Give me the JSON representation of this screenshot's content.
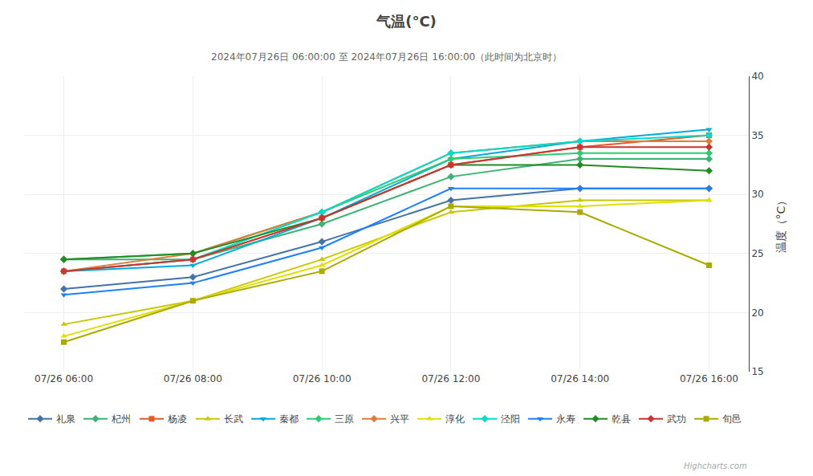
{
  "chart_data": {
    "type": "line",
    "title": "气温(°C)",
    "subtitle": "2024年07月26日 06:00:00 至 2024年07月26日 16:00:00（此时间为北京时）",
    "y_label": "温度（°C）",
    "categories": [
      "07/26 06:00",
      "07/26 08:00",
      "07/26 10:00",
      "07/26 12:00",
      "07/26 14:00",
      "07/26 16:00"
    ],
    "series": [
      {
        "name": "礼泉",
        "color": "#4572A7",
        "marker": "diamond",
        "values": [
          22.0,
          23.0,
          26.0,
          29.5,
          30.5,
          30.5
        ]
      },
      {
        "name": "杞州",
        "color": "#3cb371",
        "marker": "diamond",
        "values": [
          24.5,
          24.5,
          27.5,
          31.5,
          33.0,
          33.0
        ]
      },
      {
        "name": "杨凌",
        "color": "#e05c2a",
        "marker": "square",
        "values": [
          23.5,
          24.5,
          28.0,
          32.5,
          34.0,
          35.0
        ]
      },
      {
        "name": "长武",
        "color": "#c8c800",
        "marker": "triangle-up",
        "values": [
          19.0,
          21.0,
          24.5,
          28.5,
          29.5,
          29.5
        ]
      },
      {
        "name": "秦都",
        "color": "#00aadd",
        "marker": "triangle-down",
        "values": [
          23.5,
          24.0,
          28.0,
          33.0,
          34.5,
          35.5
        ]
      },
      {
        "name": "三原",
        "color": "#2ecc71",
        "marker": "diamond",
        "values": [
          24.5,
          25.0,
          28.5,
          33.0,
          33.5,
          33.5
        ]
      },
      {
        "name": "兴平",
        "color": "#e07b39",
        "marker": "diamond",
        "values": [
          23.5,
          25.0,
          28.5,
          33.5,
          34.5,
          34.5
        ]
      },
      {
        "name": "淳化",
        "color": "#e0e000",
        "marker": "triangle-up",
        "values": [
          18.0,
          21.0,
          24.0,
          29.0,
          29.0,
          29.5
        ]
      },
      {
        "name": "泾阳",
        "color": "#00ddcc",
        "marker": "diamond",
        "values": [
          23.5,
          24.5,
          28.5,
          33.5,
          34.5,
          35.0
        ]
      },
      {
        "name": "永寿",
        "color": "#1e80ff",
        "marker": "triangle-down",
        "values": [
          21.5,
          22.5,
          25.5,
          30.5,
          30.5,
          30.5
        ]
      },
      {
        "name": "乾县",
        "color": "#228b22",
        "marker": "diamond",
        "values": [
          24.5,
          25.0,
          28.0,
          32.5,
          32.5,
          32.0
        ]
      },
      {
        "name": "武功",
        "color": "#cc3333",
        "marker": "diamond",
        "values": [
          23.5,
          24.5,
          28.0,
          32.5,
          34.0,
          34.0
        ]
      },
      {
        "name": "旬邑",
        "color": "#aaaa00",
        "marker": "square",
        "values": [
          17.5,
          21.0,
          23.5,
          29.0,
          28.5,
          24.0
        ]
      }
    ],
    "ylim": [
      15,
      40
    ],
    "yticks": [
      15,
      20,
      25,
      30,
      35,
      40
    ],
    "grid": true,
    "legend": "bottom",
    "annotations": [
      "Highcharts.com"
    ]
  }
}
